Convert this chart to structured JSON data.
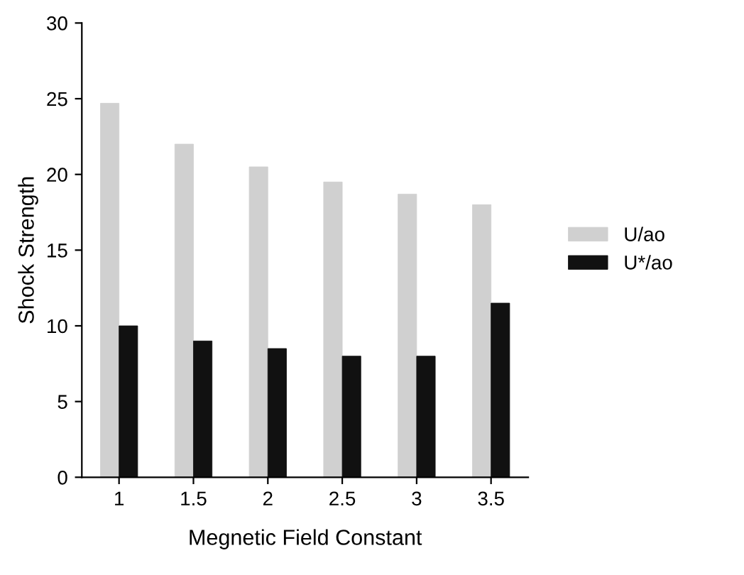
{
  "chart_data": {
    "type": "bar",
    "xlabel": "Megnetic Field Constant",
    "ylabel": "Shock Strength",
    "categories": [
      "1",
      "1.5",
      "2",
      "2.5",
      "3",
      "3.5"
    ],
    "series": [
      {
        "name": "U/ao",
        "color": "#d0d0d0",
        "values": [
          24.7,
          22.0,
          20.5,
          19.5,
          18.7,
          18.0
        ]
      },
      {
        "name": "U*/ao",
        "color": "#111111",
        "values": [
          10.0,
          9.0,
          8.5,
          8.0,
          8.0,
          11.5
        ]
      }
    ],
    "ylim": [
      0,
      30
    ],
    "yticks": [
      0,
      5,
      10,
      15,
      20,
      25,
      30
    ],
    "grid": false,
    "legend": "right"
  }
}
